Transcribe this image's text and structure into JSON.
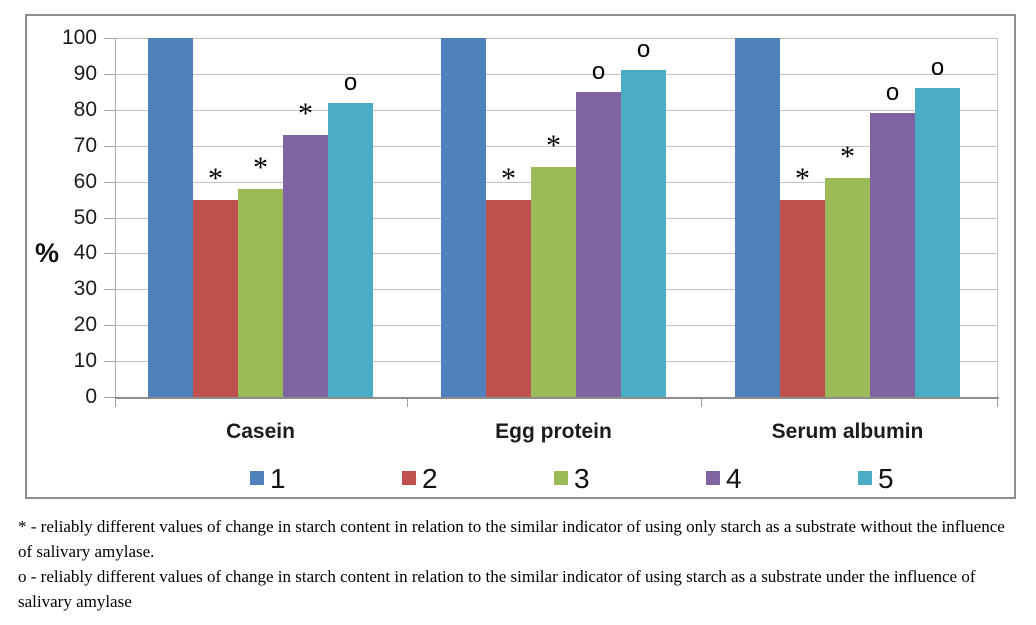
{
  "chart_data": {
    "type": "bar",
    "title": "",
    "xlabel": "",
    "ylabel": "%",
    "ylim": [
      0,
      100
    ],
    "ytick_step": 10,
    "grid": true,
    "legend_position": "bottom",
    "categories": [
      "Casein",
      "Egg protein",
      "Serum albumin"
    ],
    "series": [
      {
        "name": "1",
        "color": "#4F81BD",
        "values": [
          100,
          100,
          100
        ],
        "markers": [
          "",
          "",
          ""
        ]
      },
      {
        "name": "2",
        "color": "#C0504D",
        "values": [
          55,
          55,
          55
        ],
        "markers": [
          "*",
          "*",
          "*"
        ]
      },
      {
        "name": "3",
        "color": "#9BBB59",
        "values": [
          58,
          64,
          61
        ],
        "markers": [
          "*",
          "*",
          "*"
        ]
      },
      {
        "name": "4",
        "color": "#8064A2",
        "values": [
          73,
          85,
          79
        ],
        "markers": [
          "*",
          "o",
          "o"
        ]
      },
      {
        "name": "5",
        "color": "#4BACC6",
        "values": [
          82,
          91,
          86
        ],
        "markers": [
          "o",
          "o",
          "o"
        ]
      }
    ],
    "legend_entries": [
      "1",
      "2",
      "3",
      "4",
      "5"
    ]
  },
  "footnotes": {
    "star_note": "* - reliably different values of change in starch content in relation to the similar indicator of using only starch as a substrate without the influence of salivary amylase.",
    "o_note": "o - reliably different values of change in starch content in relation to the similar indicator of using starch as a substrate under the influence of salivary amylase"
  }
}
